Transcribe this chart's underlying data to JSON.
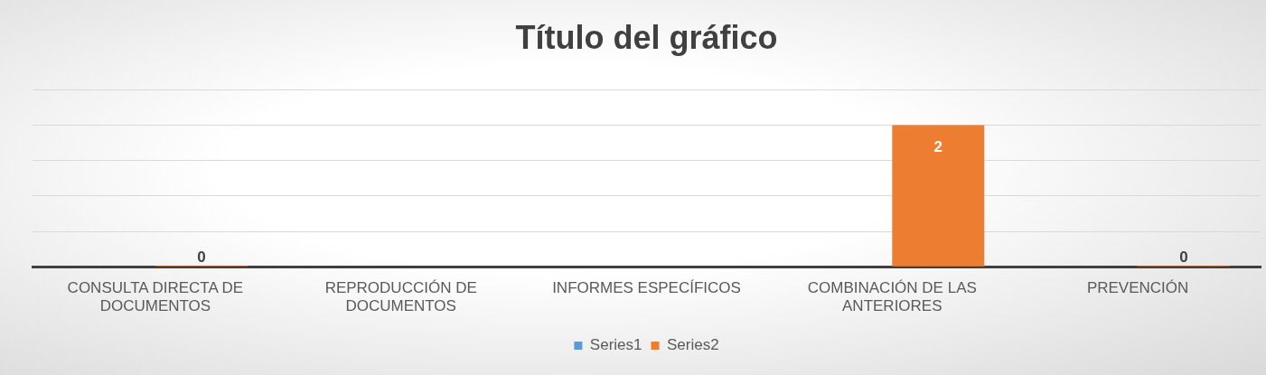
{
  "chart_data": {
    "type": "bar",
    "title": "Título del gráfico",
    "categories": [
      "CONSULTA DIRECTA DE DOCUMENTOS",
      "REPRODUCCIÓN DE DOCUMENTOS",
      "INFORMES ESPECÍFICOS",
      "COMBINACIÓN DE LAS ANTERIORES",
      "PREVENCIÓN"
    ],
    "series": [
      {
        "name": "Series1",
        "color": "#5b9bd5",
        "values": [
          null,
          null,
          null,
          null,
          null
        ]
      },
      {
        "name": "Series2",
        "color": "#ed7d31",
        "values": [
          0,
          null,
          null,
          2,
          0
        ]
      }
    ],
    "ylim": [
      0,
      2.5
    ],
    "yticks": [
      {
        "value": 0,
        "label": null
      },
      {
        "value": 0.5,
        "label": null
      },
      {
        "value": 1,
        "label": null
      },
      {
        "value": 1.5,
        "label": null
      },
      {
        "value": 2,
        "label": null
      },
      {
        "value": 2.5,
        "label": null
      }
    ],
    "tick_labels": "x",
    "grid": "y",
    "legend": "bottom",
    "data_labels": true
  }
}
